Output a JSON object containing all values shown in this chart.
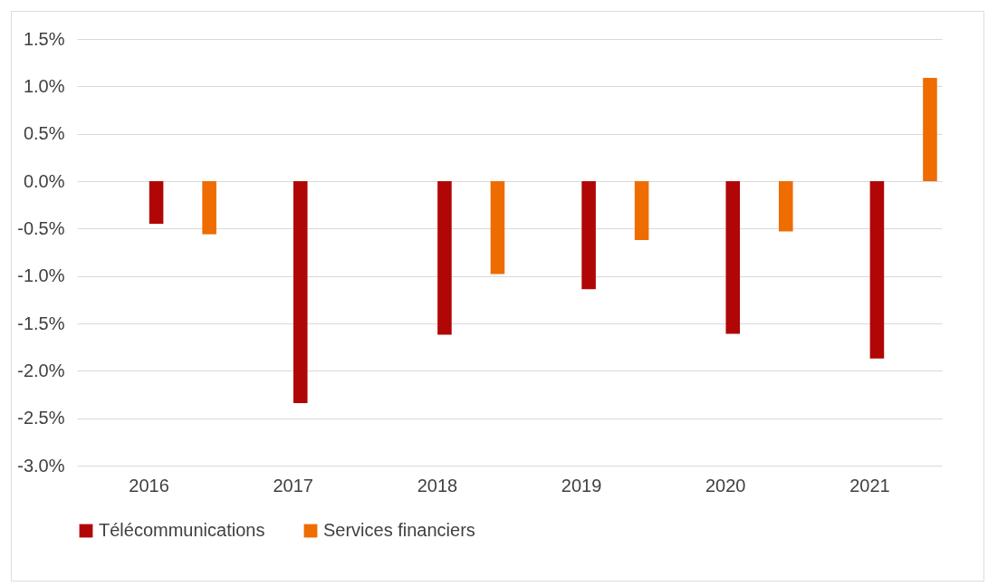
{
  "chart_data": {
    "type": "bar",
    "categories": [
      "2016",
      "2017",
      "2018",
      "2019",
      "2020",
      "2021"
    ],
    "series": [
      {
        "name": "Télécommunications",
        "color": "#b00606",
        "values": [
          -0.45,
          -2.34,
          -1.62,
          -1.14,
          -1.61,
          -1.87
        ]
      },
      {
        "name": "Services financiers",
        "color": "#ee6c00",
        "values": [
          -0.56,
          null,
          -0.98,
          -0.62,
          -0.53,
          1.09
        ]
      }
    ],
    "ylim": [
      -3.0,
      1.5
    ],
    "yticks": [
      {
        "value": -3.0,
        "label": "-3.0%"
      },
      {
        "value": -2.5,
        "label": "-2.5%"
      },
      {
        "value": -2.0,
        "label": "-2.0%"
      },
      {
        "value": -1.5,
        "label": "-1.5%"
      },
      {
        "value": -1.0,
        "label": "-1.0%"
      },
      {
        "value": -0.5,
        "label": "-0.5%"
      },
      {
        "value": 0.0,
        "label": "0.0%"
      },
      {
        "value": 0.5,
        "label": "0.5%"
      },
      {
        "value": 1.0,
        "label": "1.0%"
      },
      {
        "value": 1.5,
        "label": "1.5%"
      }
    ],
    "grid": "y",
    "legend": "bottom"
  }
}
